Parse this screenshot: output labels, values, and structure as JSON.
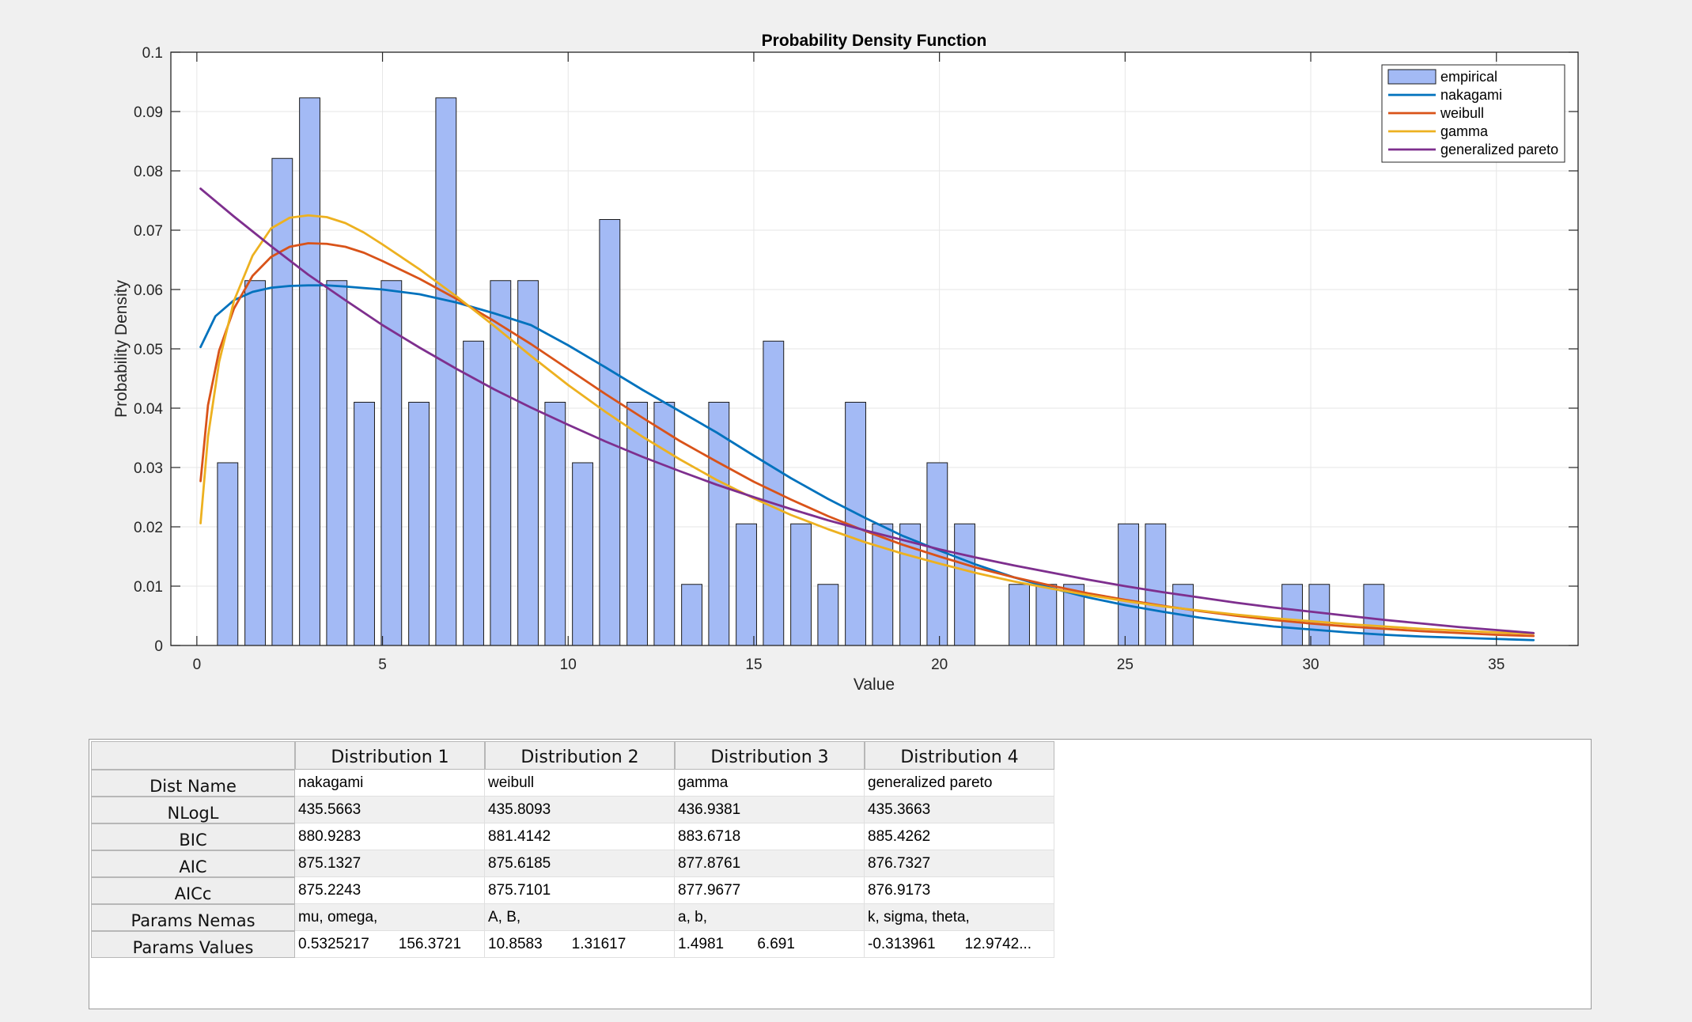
{
  "chart_data": {
    "type": "bar",
    "title": "Probability Density Function",
    "xlabel": "Value",
    "ylabel": "Probability Density",
    "xlim": [
      -0.7,
      37.2
    ],
    "ylim": [
      0,
      0.1
    ],
    "xticks": [
      "0",
      "5",
      "10",
      "15",
      "20",
      "25",
      "30",
      "35"
    ],
    "yticks": [
      "0",
      "0.01",
      "0.02",
      "0.03",
      "0.04",
      "0.05",
      "0.06",
      "0.07",
      "0.08",
      "0.09",
      "0.1"
    ],
    "grid": true,
    "legend_position": "top-right",
    "bar_width": 0.55,
    "bars": {
      "name": "empirical",
      "color": "#a3baf5",
      "x": [
        0.83,
        1.57,
        2.3,
        3.04,
        3.77,
        4.51,
        5.24,
        5.98,
        6.71,
        7.45,
        8.18,
        8.92,
        9.65,
        10.39,
        11.12,
        11.86,
        12.59,
        13.33,
        14.06,
        14.8,
        15.53,
        16.27,
        17.0,
        17.74,
        18.47,
        19.21,
        19.94,
        20.68,
        21.41,
        22.15,
        22.88,
        23.62,
        24.35,
        25.09,
        25.82,
        26.56,
        27.29,
        28.03,
        28.76,
        29.5,
        30.23,
        30.97,
        31.7
      ],
      "values": [
        0.0308,
        0.0615,
        0.0821,
        0.0923,
        0.0615,
        0.041,
        0.0615,
        0.041,
        0.0923,
        0.0513,
        0.0615,
        0.0615,
        0.041,
        0.0308,
        0.0718,
        0.041,
        0.041,
        0.0103,
        0.041,
        0.0205,
        0.0513,
        0.0205,
        0.0103,
        0.041,
        0.0205,
        0.0205,
        0.0308,
        0.0205,
        0,
        0.0103,
        0.0103,
        0.0103,
        0,
        0.0205,
        0.0205,
        0.0103,
        0,
        0,
        0,
        0.0103,
        0.0103,
        0,
        0.0103
      ]
    },
    "series": [
      {
        "name": "nakagami",
        "color": "#0072bd",
        "x": [
          0.1,
          0.5,
          1,
          1.5,
          2,
          2.5,
          3,
          3.5,
          4,
          5,
          6,
          7,
          8,
          9,
          10,
          11,
          12,
          13,
          14,
          15,
          16,
          17,
          18,
          19,
          20,
          21,
          22,
          23,
          24,
          25,
          26,
          27,
          28,
          29,
          30,
          31,
          32,
          33,
          34,
          35,
          36
        ],
        "y": [
          0.0503,
          0.0555,
          0.0582,
          0.0596,
          0.0603,
          0.0606,
          0.0607,
          0.0607,
          0.0605,
          0.06,
          0.0592,
          0.0578,
          0.056,
          0.054,
          0.0506,
          0.0469,
          0.0431,
          0.0395,
          0.0359,
          0.032,
          0.0282,
          0.0247,
          0.0215,
          0.0185,
          0.016,
          0.0136,
          0.0115,
          0.0097,
          0.0081,
          0.0068,
          0.0057,
          0.0047,
          0.0039,
          0.0032,
          0.0027,
          0.0022,
          0.0018,
          0.0015,
          0.0013,
          0.0011,
          0.0009
        ]
      },
      {
        "name": "weibull",
        "color": "#d95319",
        "x": [
          0.1,
          0.3,
          0.6,
          1,
          1.5,
          2,
          2.5,
          3,
          3.5,
          4,
          4.5,
          5,
          6,
          7,
          8,
          9,
          10,
          11,
          12,
          13,
          14,
          15,
          16,
          17,
          18,
          19,
          20,
          21,
          22,
          23,
          24,
          25,
          26,
          27,
          28,
          29,
          30,
          31,
          32,
          33,
          34,
          35,
          36
        ],
        "y": [
          0.0277,
          0.0405,
          0.0497,
          0.0568,
          0.0623,
          0.0655,
          0.0672,
          0.0678,
          0.0677,
          0.0672,
          0.0662,
          0.0648,
          0.0618,
          0.0584,
          0.0547,
          0.0508,
          0.0466,
          0.0424,
          0.0384,
          0.0345,
          0.031,
          0.0276,
          0.0246,
          0.0218,
          0.0193,
          0.017,
          0.015,
          0.0131,
          0.0115,
          0.0101,
          0.0088,
          0.0077,
          0.0067,
          0.0058,
          0.005,
          0.0043,
          0.0037,
          0.0032,
          0.0028,
          0.0024,
          0.0021,
          0.0018,
          0.0016
        ]
      },
      {
        "name": "gamma",
        "color": "#edb120",
        "x": [
          0.1,
          0.3,
          0.6,
          1,
          1.5,
          2,
          2.5,
          3,
          3.5,
          4,
          4.5,
          5,
          6,
          7,
          8,
          9,
          10,
          11,
          12,
          13,
          14,
          15,
          16,
          17,
          18,
          19,
          20,
          21,
          22,
          23,
          24,
          25,
          26,
          27,
          28,
          29,
          30,
          31,
          32,
          33,
          34,
          35,
          36
        ],
        "y": [
          0.0206,
          0.0352,
          0.0478,
          0.0581,
          0.0657,
          0.0703,
          0.0721,
          0.0725,
          0.0722,
          0.0712,
          0.0696,
          0.0676,
          0.0634,
          0.0588,
          0.0539,
          0.0488,
          0.0439,
          0.0394,
          0.0352,
          0.0314,
          0.0279,
          0.0248,
          0.022,
          0.0196,
          0.0174,
          0.0155,
          0.0138,
          0.0122,
          0.0108,
          0.0096,
          0.0085,
          0.0075,
          0.0066,
          0.0059,
          0.0052,
          0.0046,
          0.0041,
          0.0036,
          0.0032,
          0.0028,
          0.0025,
          0.0022,
          0.002
        ]
      },
      {
        "name": "generalized pareto",
        "color": "#7e2f8e",
        "x": [
          0.1,
          1,
          2,
          3,
          4,
          5,
          6,
          7,
          8,
          9,
          10,
          11,
          12,
          13,
          14,
          15,
          16,
          17,
          18,
          19,
          20,
          21,
          22,
          23,
          24,
          25,
          26,
          27,
          28,
          29,
          30,
          31,
          32,
          33,
          34,
          35,
          36
        ],
        "y": [
          0.077,
          0.0723,
          0.0673,
          0.0625,
          0.0582,
          0.054,
          0.0502,
          0.0466,
          0.0432,
          0.0401,
          0.0372,
          0.0344,
          0.0318,
          0.0294,
          0.0271,
          0.025,
          0.023,
          0.0211,
          0.0194,
          0.0178,
          0.0162,
          0.0148,
          0.0135,
          0.0123,
          0.0111,
          0.01,
          0.009,
          0.0081,
          0.0072,
          0.0064,
          0.0057,
          0.005,
          0.0043,
          0.0037,
          0.0031,
          0.0026,
          0.0021
        ]
      }
    ]
  },
  "table": {
    "columns": [
      "Distribution 1",
      "Distribution 2",
      "Distribution 3",
      "Distribution 4"
    ],
    "rows": [
      {
        "header": "Dist Name",
        "cells": [
          "nakagami",
          "weibull",
          "gamma",
          "generalized pareto"
        ]
      },
      {
        "header": "NLogL",
        "cells": [
          "435.5663",
          "435.8093",
          "436.9381",
          "435.3663"
        ]
      },
      {
        "header": "BIC",
        "cells": [
          "880.9283",
          "881.4142",
          "883.6718",
          "885.4262"
        ]
      },
      {
        "header": "AIC",
        "cells": [
          "875.1327",
          "875.6185",
          "877.8761",
          "876.7327"
        ]
      },
      {
        "header": "AICc",
        "cells": [
          "875.2243",
          "875.7101",
          "877.9677",
          "876.9173"
        ]
      },
      {
        "header": "Params Nemas",
        "cells": [
          "mu, omega,",
          "A, B,",
          "a, b,",
          "k, sigma, theta,"
        ]
      },
      {
        "header": "Params Values",
        "cells": [
          "0.5325217       156.3721",
          "10.8583       1.31617",
          "1.4981        6.691",
          "-0.313961       12.9742..."
        ]
      }
    ]
  }
}
